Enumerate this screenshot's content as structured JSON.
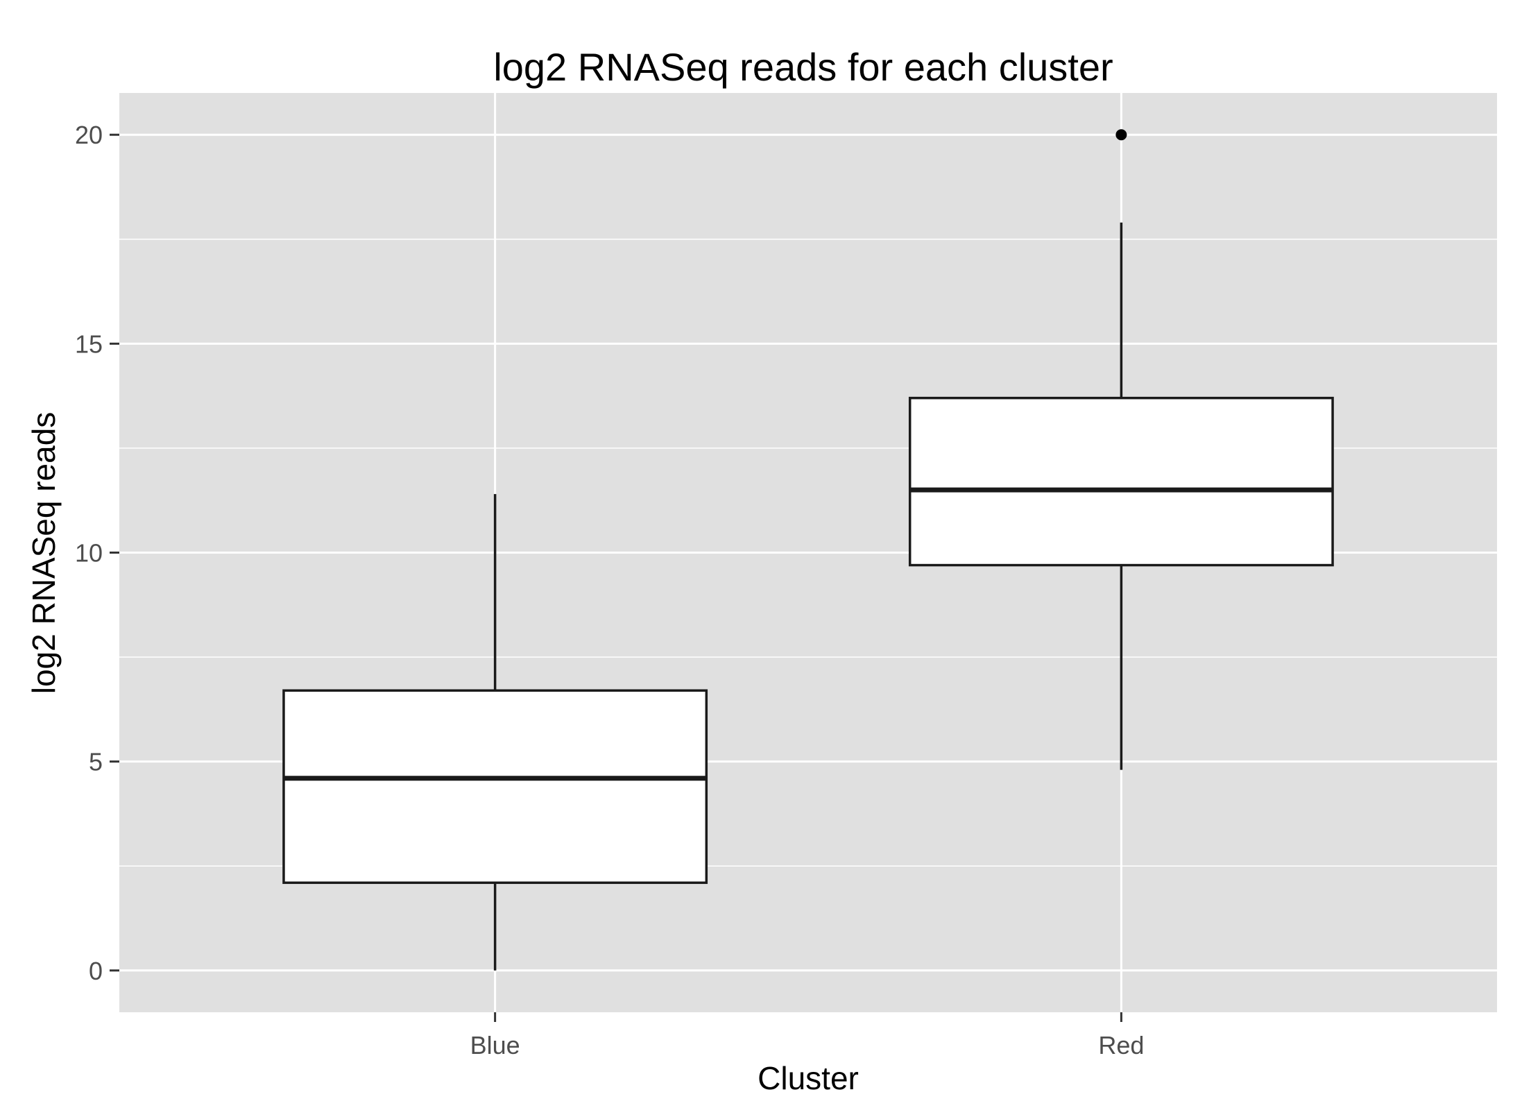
{
  "chart_data": {
    "type": "boxplot",
    "title": "log2 RNASeq reads for each cluster",
    "xlabel": "Cluster",
    "ylabel": "log2 RNASeq reads",
    "ylim": [
      -1,
      21
    ],
    "yticks": [
      0,
      5,
      10,
      15,
      20
    ],
    "ytick_labels": [
      "0",
      "5",
      "10",
      "15",
      "20"
    ],
    "grid": true,
    "categories": [
      "Blue",
      "Red"
    ],
    "boxes": [
      {
        "category": "Blue",
        "whisker_low": 0,
        "q1": 2.1,
        "median": 4.6,
        "q3": 6.7,
        "whisker_high": 11.4,
        "outliers": []
      },
      {
        "category": "Red",
        "whisker_low": 4.8,
        "q1": 9.7,
        "median": 11.5,
        "q3": 13.7,
        "whisker_high": 17.9,
        "outliers": [
          20
        ]
      }
    ],
    "colors": {
      "panel": "#e0e0e0",
      "grid": "#ffffff",
      "box_fill": "#ffffff",
      "box_stroke": "#1a1a1a"
    }
  }
}
